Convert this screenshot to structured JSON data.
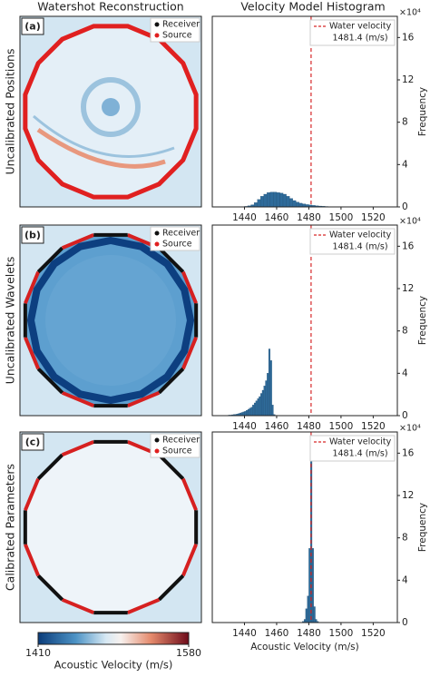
{
  "column_titles": [
    "Watershot Reconstruction",
    "Velocity Model Histogram"
  ],
  "row_labels": [
    "Uncalibrated Positions",
    "Uncalibrated Wavelets",
    "Calibrated Parameters"
  ],
  "panel_labels": [
    "(a)",
    "(b)",
    "(c)"
  ],
  "image_legend": {
    "receiver": "Receiver",
    "source": "Source"
  },
  "colorbar": {
    "label": "Acoustic Velocity (m/s)",
    "clim": [
      1410,
      1580
    ],
    "ticks": [
      1410,
      1580
    ]
  },
  "chart_data": [
    {
      "type": "histogram",
      "color": "#2f6b9a",
      "bins": [
        1440,
        1442,
        1444,
        1446,
        1448,
        1450,
        1452,
        1454,
        1456,
        1458,
        1460,
        1462,
        1464,
        1466,
        1468,
        1470,
        1472,
        1474,
        1476,
        1478,
        1480,
        1482,
        1484,
        1486,
        1488,
        1490,
        1492,
        1494,
        1496,
        1498,
        1500
      ],
      "values": [
        0.05,
        0.1,
        0.2,
        0.4,
        0.7,
        1.0,
        1.2,
        1.35,
        1.4,
        1.4,
        1.35,
        1.3,
        1.2,
        1.0,
        0.8,
        0.6,
        0.45,
        0.35,
        0.28,
        0.22,
        0.18,
        0.14,
        0.1,
        0.08,
        0.06,
        0.04,
        0.03,
        0.02,
        0.01,
        0.01
      ],
      "xlim": [
        1420,
        1535
      ],
      "xticks": [
        1440,
        1460,
        1480,
        1500,
        1520
      ],
      "ylim": [
        0,
        18
      ],
      "yticks": [
        0,
        4,
        8,
        12,
        16
      ],
      "ylabel": "Frequency",
      "y_multiplier": "×10⁴",
      "reference_line": {
        "name": "Water velocity",
        "value": 1481.4,
        "label": "1481.4 (m/s)",
        "color": "#d62728"
      }
    },
    {
      "type": "histogram",
      "color": "#2f6b9a",
      "bins": [
        1430,
        1431,
        1432,
        1433,
        1434,
        1435,
        1436,
        1437,
        1438,
        1439,
        1440,
        1441,
        1442,
        1443,
        1444,
        1445,
        1446,
        1447,
        1448,
        1449,
        1450,
        1451,
        1452,
        1453,
        1454,
        1455,
        1456,
        1457,
        1458,
        1459,
        1460
      ],
      "values": [
        0.05,
        0.05,
        0.08,
        0.1,
        0.12,
        0.15,
        0.2,
        0.25,
        0.3,
        0.35,
        0.4,
        0.5,
        0.6,
        0.7,
        0.8,
        1.0,
        1.2,
        1.4,
        1.6,
        1.8,
        2.1,
        2.4,
        2.8,
        3.3,
        4.0,
        6.3,
        5.2,
        1.0,
        0.1,
        0.02
      ],
      "xlim": [
        1420,
        1535
      ],
      "xticks": [
        1440,
        1460,
        1480,
        1500,
        1520
      ],
      "ylim": [
        0,
        18
      ],
      "yticks": [
        0,
        4,
        8,
        12,
        16
      ],
      "ylabel": "Frequency",
      "y_multiplier": "×10⁴",
      "reference_line": {
        "name": "Water velocity",
        "value": 1481.4,
        "label": "1481.4 (m/s)",
        "color": "#d62728"
      }
    },
    {
      "type": "histogram",
      "color": "#2f6b9a",
      "bins": [
        1476,
        1477,
        1478,
        1479,
        1480,
        1481,
        1482,
        1483,
        1484,
        1485,
        1486
      ],
      "values": [
        0.1,
        0.3,
        1.3,
        2.5,
        7,
        15.5,
        7,
        1.5,
        0.3,
        0.1
      ],
      "xlim": [
        1420,
        1535
      ],
      "xticks": [
        1440,
        1460,
        1480,
        1500,
        1520
      ],
      "ylim": [
        0,
        18
      ],
      "yticks": [
        0,
        4,
        8,
        12,
        16
      ],
      "ylabel": "Frequency",
      "y_multiplier": "×10⁴",
      "xlabel": "Acoustic Velocity (m/s)",
      "reference_line": {
        "name": "Water velocity",
        "value": 1481.4,
        "label": "1481.4 (m/s)",
        "color": "#d62728"
      }
    }
  ]
}
